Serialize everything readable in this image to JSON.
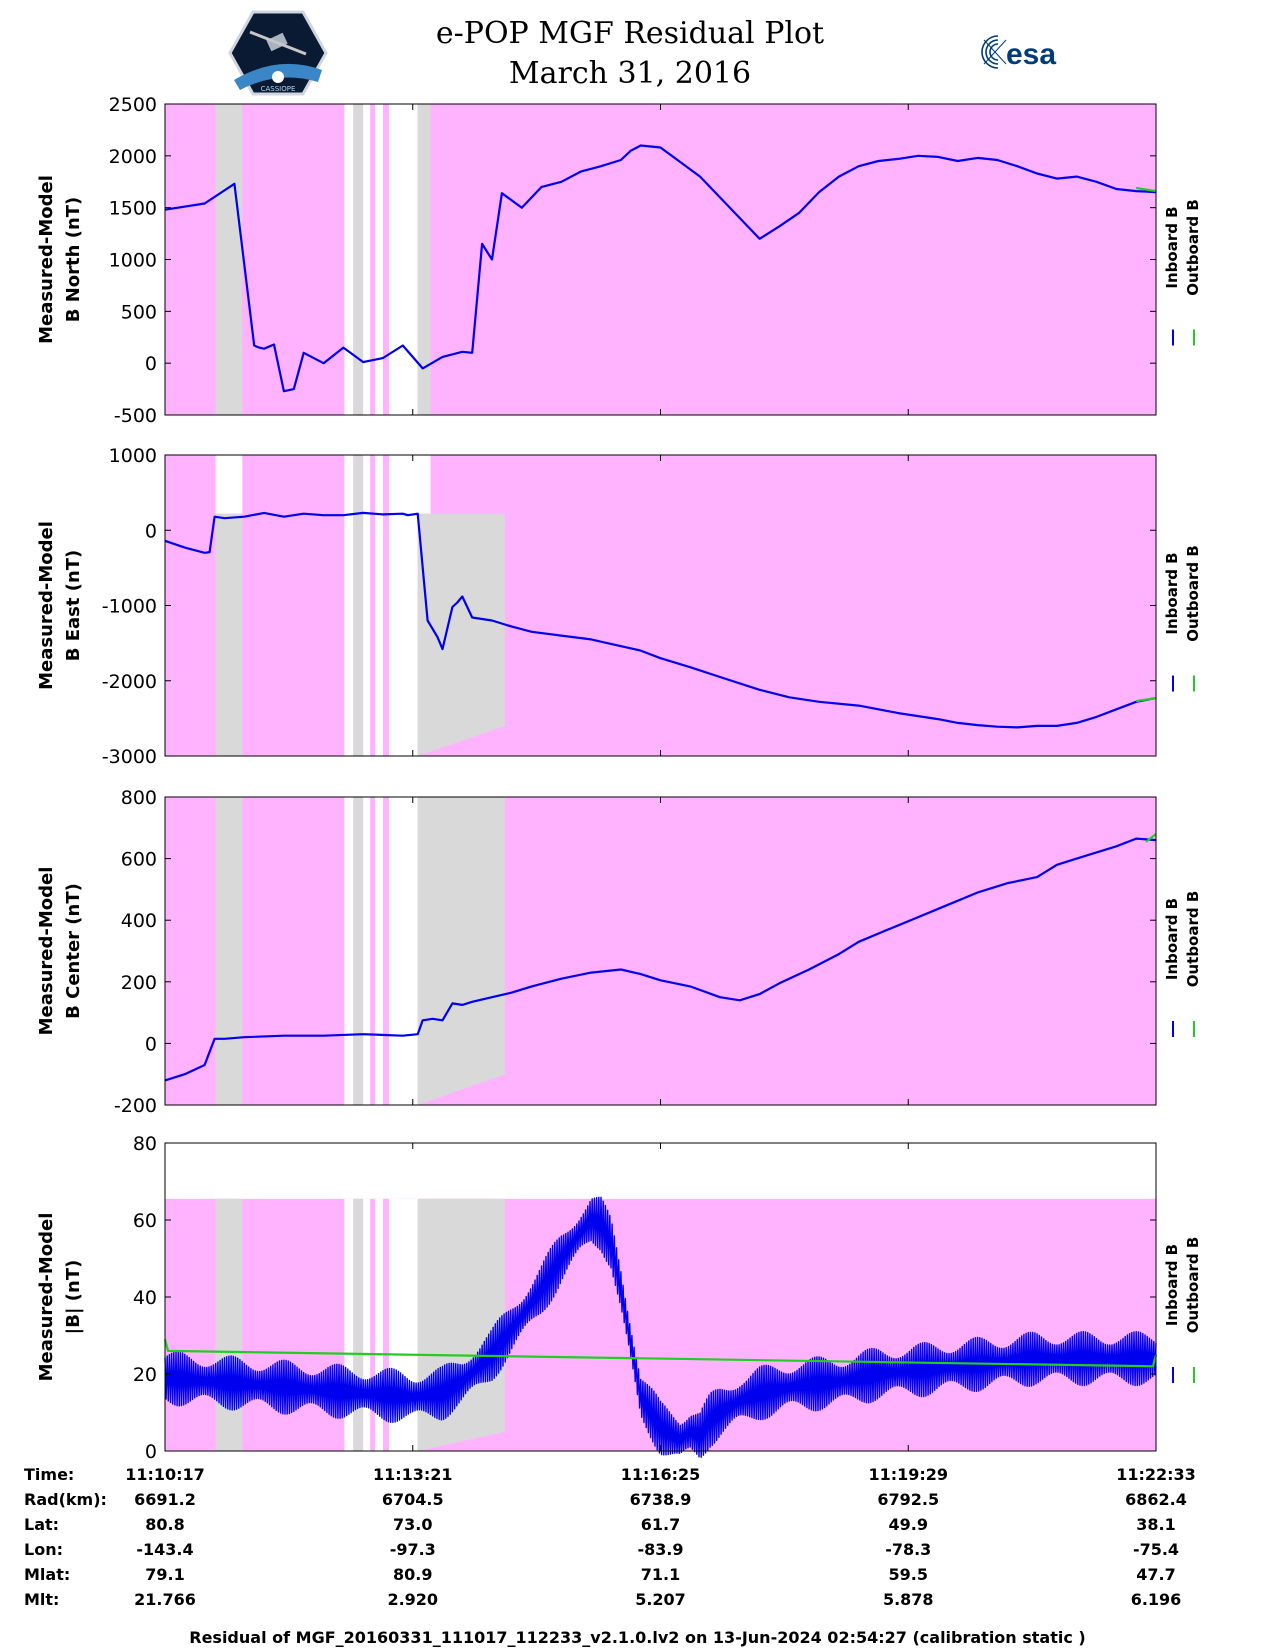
{
  "header": {
    "title": "e-POP MGF Residual Plot",
    "date": "March 31, 2016"
  },
  "logos": {
    "left": "cassiope-satellite-logo",
    "left_text": "CASSIOPE",
    "right_text": "esa"
  },
  "colors": {
    "background_band": "#ffb3ff",
    "gap_band": "#d9d9d9",
    "inboard": "#0000ee",
    "outboard": "#22cc22"
  },
  "legend": {
    "inboard": "Inboard B",
    "outboard": "Outboard B"
  },
  "chart_data": [
    {
      "type": "line",
      "ylabel": [
        "Measured-Model",
        "B North (nT)"
      ],
      "ylim": [
        -500,
        2500
      ],
      "yticks": [
        "2500",
        "2000",
        "1500",
        "1000",
        "500",
        "0",
        "-500"
      ],
      "series": [
        {
          "name": "Inboard B",
          "x": [
            0,
            0.04,
            0.07,
            0.09,
            0.095,
            0.1,
            0.11,
            0.12,
            0.13,
            0.14,
            0.16,
            0.18,
            0.2,
            0.22,
            0.24,
            0.26,
            0.28,
            0.3,
            0.31,
            0.32,
            0.33,
            0.34,
            0.36,
            0.38,
            0.4,
            0.42,
            0.44,
            0.46,
            0.47,
            0.48,
            0.5,
            0.54,
            0.57,
            0.6,
            0.62,
            0.64,
            0.65,
            0.66,
            0.68,
            0.7,
            0.72,
            0.74,
            0.76,
            0.78,
            0.8,
            0.82,
            0.84,
            0.86,
            0.88,
            0.9,
            0.92,
            0.94,
            0.96,
            0.98,
            1.0
          ],
          "values": [
            1480,
            1540,
            1730,
            170,
            150,
            140,
            180,
            -270,
            -250,
            100,
            0,
            150,
            10,
            50,
            170,
            -50,
            60,
            110,
            100,
            1150,
            1000,
            1640,
            1500,
            1700,
            1750,
            1850,
            1900,
            1960,
            2050,
            2100,
            2080,
            1800,
            1500,
            1200,
            1320,
            1450,
            1550,
            1650,
            1800,
            1900,
            1950,
            1970,
            2000,
            1990,
            1950,
            1980,
            1960,
            1900,
            1830,
            1780,
            1800,
            1750,
            1680,
            1660,
            1650
          ]
        },
        {
          "name": "Outboard B",
          "x": [
            0.98,
            1.0
          ],
          "values": [
            1690,
            1660
          ]
        }
      ],
      "bands": [
        {
          "kind": "pink",
          "x0": 0.0,
          "x1": 1.0,
          "y0": -500,
          "y1": 2500
        },
        {
          "kind": "gray",
          "x0": 0.051,
          "x1": 0.078
        },
        {
          "kind": "white",
          "x0": 0.181,
          "x1": 0.19
        },
        {
          "kind": "gray",
          "x0": 0.19,
          "x1": 0.2
        },
        {
          "kind": "white",
          "x0": 0.2,
          "x1": 0.207
        },
        {
          "kind": "white",
          "x0": 0.212,
          "x1": 0.22
        },
        {
          "kind": "white",
          "x0": 0.226,
          "x1": 0.255
        },
        {
          "kind": "gray",
          "x0": 0.255,
          "x1": 0.268
        }
      ]
    },
    {
      "type": "line",
      "ylabel": [
        "Measured-Model",
        "B East (nT)"
      ],
      "ylim": [
        -3000,
        1000
      ],
      "yticks": [
        "1000",
        "0",
        "-1000",
        "-2000",
        "-3000"
      ],
      "series": [
        {
          "name": "Inboard B",
          "x": [
            0,
            0.02,
            0.04,
            0.045,
            0.05,
            0.06,
            0.08,
            0.1,
            0.12,
            0.14,
            0.16,
            0.18,
            0.2,
            0.22,
            0.24,
            0.245,
            0.255,
            0.265,
            0.275,
            0.28,
            0.29,
            0.295,
            0.3,
            0.31,
            0.33,
            0.35,
            0.37,
            0.4,
            0.43,
            0.45,
            0.48,
            0.5,
            0.53,
            0.56,
            0.6,
            0.63,
            0.66,
            0.7,
            0.72,
            0.74,
            0.76,
            0.78,
            0.8,
            0.82,
            0.84,
            0.86,
            0.88,
            0.9,
            0.92,
            0.94,
            0.96,
            0.98,
            1.0
          ],
          "values": [
            -140,
            -230,
            -300,
            -290,
            180,
            160,
            180,
            230,
            180,
            220,
            200,
            200,
            230,
            210,
            220,
            200,
            220,
            -1200,
            -1420,
            -1580,
            -1020,
            -960,
            -880,
            -1160,
            -1200,
            -1280,
            -1350,
            -1400,
            -1450,
            -1510,
            -1600,
            -1700,
            -1820,
            -1950,
            -2120,
            -2220,
            -2280,
            -2330,
            -2380,
            -2430,
            -2470,
            -2510,
            -2560,
            -2590,
            -2610,
            -2620,
            -2600,
            -2600,
            -2560,
            -2480,
            -2380,
            -2280,
            -2230
          ]
        },
        {
          "name": "Outboard B",
          "x": [
            0.98,
            1.0
          ],
          "values": [
            -2270,
            -2230
          ]
        }
      ],
      "bands": [
        {
          "kind": "pink",
          "x0": 0.0,
          "x1": 1.0,
          "y0": -3000,
          "y1": 1000
        },
        {
          "kind": "white",
          "x0": 0.051,
          "x1": 0.078,
          "y0": 220,
          "y1": 1000
        },
        {
          "kind": "gray",
          "x0": 0.051,
          "x1": 0.078,
          "y0": -3000,
          "y1": 220
        },
        {
          "kind": "white",
          "x0": 0.181,
          "x1": 0.19
        },
        {
          "kind": "gray",
          "x0": 0.19,
          "x1": 0.2
        },
        {
          "kind": "white",
          "x0": 0.2,
          "x1": 0.207
        },
        {
          "kind": "white",
          "x0": 0.212,
          "x1": 0.22
        },
        {
          "kind": "white",
          "x0": 0.226,
          "x1": 0.268,
          "y0": 220,
          "y1": 1000
        },
        {
          "kind": "white",
          "x0": 0.226,
          "x1": 0.255,
          "y0": -3000,
          "y1": 220
        },
        {
          "kind": "gray_poly",
          "points": [
            [
              0.255,
              -3000
            ],
            [
              0.255,
              220
            ],
            [
              0.343,
              220
            ],
            [
              0.343,
              -2600
            ]
          ]
        }
      ]
    },
    {
      "type": "line",
      "ylabel": [
        "Measured-Model",
        "B Center (nT)"
      ],
      "ylim": [
        -200,
        800
      ],
      "yticks": [
        "800",
        "600",
        "400",
        "200",
        "0",
        "-200"
      ],
      "series": [
        {
          "name": "Inboard B",
          "x": [
            0,
            0.02,
            0.04,
            0.05,
            0.06,
            0.08,
            0.12,
            0.16,
            0.2,
            0.24,
            0.255,
            0.26,
            0.27,
            0.28,
            0.29,
            0.3,
            0.31,
            0.33,
            0.35,
            0.37,
            0.4,
            0.43,
            0.46,
            0.48,
            0.5,
            0.53,
            0.56,
            0.58,
            0.6,
            0.62,
            0.65,
            0.68,
            0.7,
            0.73,
            0.76,
            0.79,
            0.82,
            0.85,
            0.88,
            0.9,
            0.92,
            0.94,
            0.96,
            0.98,
            1.0
          ],
          "values": [
            -120,
            -100,
            -70,
            15,
            15,
            20,
            25,
            25,
            30,
            25,
            30,
            75,
            80,
            75,
            130,
            125,
            135,
            150,
            165,
            185,
            210,
            230,
            240,
            225,
            205,
            185,
            150,
            140,
            160,
            195,
            240,
            290,
            330,
            370,
            410,
            450,
            490,
            520,
            540,
            580,
            600,
            620,
            640,
            665,
            660
          ]
        },
        {
          "name": "Outboard B",
          "x": [
            0.99,
            1.0
          ],
          "values": [
            655,
            680
          ]
        }
      ],
      "bands": [
        {
          "kind": "pink",
          "x0": 0.0,
          "x1": 1.0,
          "y0": -200,
          "y1": 800
        },
        {
          "kind": "gray",
          "x0": 0.051,
          "x1": 0.078
        },
        {
          "kind": "white",
          "x0": 0.181,
          "x1": 0.19
        },
        {
          "kind": "gray",
          "x0": 0.19,
          "x1": 0.2
        },
        {
          "kind": "white",
          "x0": 0.2,
          "x1": 0.207
        },
        {
          "kind": "white",
          "x0": 0.212,
          "x1": 0.22
        },
        {
          "kind": "white",
          "x0": 0.226,
          "x1": 0.255
        },
        {
          "kind": "gray_poly",
          "points": [
            [
              0.255,
              -200
            ],
            [
              0.255,
              800
            ],
            [
              0.343,
              800
            ],
            [
              0.343,
              -100
            ]
          ]
        }
      ]
    },
    {
      "type": "line",
      "ylabel": [
        "Measured-Model",
        "|B| (nT)"
      ],
      "ylim": [
        0,
        80
      ],
      "yticks": [
        "80",
        "60",
        "40",
        "20",
        "0"
      ],
      "series": [
        {
          "name": "Inboard B",
          "x": [
            0,
            0.05,
            0.1,
            0.15,
            0.2,
            0.25,
            0.28,
            0.3,
            0.33,
            0.36,
            0.38,
            0.4,
            0.42,
            0.43,
            0.44,
            0.45,
            0.46,
            0.47,
            0.48,
            0.5,
            0.52,
            0.53,
            0.54,
            0.55,
            0.56,
            0.58,
            0.6,
            0.64,
            0.68,
            0.72,
            0.76,
            0.8,
            0.84,
            0.88,
            0.92,
            0.96,
            1.0
          ],
          "values": [
            19,
            18,
            17,
            16,
            15,
            14,
            15,
            18,
            25,
            35,
            42,
            50,
            57,
            60,
            59,
            54,
            42,
            28,
            14,
            6,
            3,
            5,
            4,
            8,
            10,
            13,
            15,
            17,
            18,
            20,
            21,
            22,
            23,
            24,
            24,
            24,
            24
          ],
          "amplitude": 7
        },
        {
          "name": "Outboard B",
          "x": [
            0,
            0.003,
            0.997,
            1.0
          ],
          "values": [
            29,
            26,
            22,
            25
          ]
        }
      ],
      "bands": [
        {
          "kind": "pink",
          "x0": 0.0,
          "x1": 1.0,
          "y0": 0,
          "y1": 65.5
        },
        {
          "kind": "gray",
          "x0": 0.051,
          "x1": 0.078,
          "y0": 0,
          "y1": 65.5
        },
        {
          "kind": "white",
          "x0": 0.181,
          "x1": 0.19,
          "y0": 0,
          "y1": 65.5
        },
        {
          "kind": "gray",
          "x0": 0.19,
          "x1": 0.2,
          "y0": 0,
          "y1": 65.5
        },
        {
          "kind": "white",
          "x0": 0.2,
          "x1": 0.207,
          "y0": 0,
          "y1": 65.5
        },
        {
          "kind": "white",
          "x0": 0.212,
          "x1": 0.22,
          "y0": 0,
          "y1": 65.5
        },
        {
          "kind": "white",
          "x0": 0.226,
          "x1": 0.255,
          "y0": 0,
          "y1": 65.5
        },
        {
          "kind": "gray_poly",
          "points": [
            [
              0.255,
              0
            ],
            [
              0.255,
              65.5
            ],
            [
              0.343,
              65.5
            ],
            [
              0.343,
              5
            ]
          ]
        }
      ]
    }
  ],
  "table": {
    "labels": [
      "Time:",
      "Rad(km):",
      "Lat:",
      "Lon:",
      "Mlat:",
      "Mlt:"
    ],
    "columns": [
      [
        "11:10:17",
        "6691.2",
        "80.8",
        "-143.4",
        "79.1",
        "21.766"
      ],
      [
        "11:13:21",
        "6704.5",
        "73.0",
        "-97.3",
        "80.9",
        "2.920"
      ],
      [
        "11:16:25",
        "6738.9",
        "61.7",
        "-83.9",
        "71.1",
        "5.207"
      ],
      [
        "11:19:29",
        "6792.5",
        "49.9",
        "-78.3",
        "59.5",
        "5.878"
      ],
      [
        "11:22:33",
        "6862.4",
        "38.1",
        "-75.4",
        "47.7",
        "6.196"
      ]
    ]
  },
  "footer": "Residual of MGF_20160331_111017_112233_v2.1.0.lv2 on 13-Jun-2024 02:54:27 (calibration static )"
}
